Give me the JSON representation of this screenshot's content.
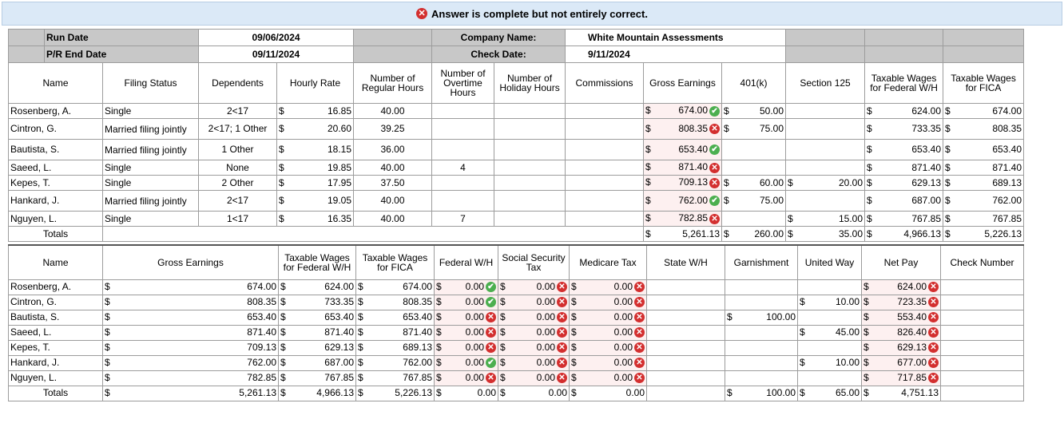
{
  "banner": {
    "text": "Answer is complete but not entirely correct.",
    "icon": "error-icon"
  },
  "meta": {
    "run_date_label": "Run Date",
    "run_date": "09/06/2024",
    "pr_end_label": "P/R End Date",
    "pr_end": "09/11/2024",
    "company_label": "Company Name:",
    "company": "White Mountain Assessments",
    "check_date_label": "Check Date:",
    "check_date": "9/11/2024"
  },
  "t1_headers": [
    "Name",
    "Filing Status",
    "Dependents",
    "Hourly Rate",
    "Number of Regular Hours",
    "Number of Overtime Hours",
    "Number of Holiday Hours",
    "Commissions",
    "Gross Earnings",
    "401(k)",
    "Section 125",
    "Taxable Wages for Federal W/H",
    "Taxable Wages for FICA"
  ],
  "t1_rows": [
    {
      "name": "Rosenberg, A.",
      "status": "Single",
      "dep": "2<17",
      "rate": "16.85",
      "reg": "40.00",
      "ot": "",
      "hol": "",
      "comm": "",
      "gross": "674.00",
      "gross_ok": "ok",
      "k401": "50.00",
      "s125": "",
      "fed": "624.00",
      "fica": "674.00"
    },
    {
      "name": "Cintron, G.",
      "status": "Married filing jointly",
      "dep": "2<17; 1 Other",
      "rate": "20.60",
      "reg": "39.25",
      "ot": "",
      "hol": "",
      "comm": "",
      "gross": "808.35",
      "gross_ok": "bad",
      "k401": "75.00",
      "s125": "",
      "fed": "733.35",
      "fica": "808.35"
    },
    {
      "name": "Bautista, S.",
      "status": "Married filing jointly",
      "dep": "1 Other",
      "rate": "18.15",
      "reg": "36.00",
      "ot": "",
      "hol": "",
      "comm": "",
      "gross": "653.40",
      "gross_ok": "ok",
      "k401": "",
      "s125": "",
      "fed": "653.40",
      "fica": "653.40"
    },
    {
      "name": "Saeed, L.",
      "status": "Single",
      "dep": "None",
      "rate": "19.85",
      "reg": "40.00",
      "ot": "4",
      "hol": "",
      "comm": "",
      "gross": "871.40",
      "gross_ok": "bad",
      "k401": "",
      "s125": "",
      "fed": "871.40",
      "fica": "871.40"
    },
    {
      "name": "Kepes, T.",
      "status": "Single",
      "dep": "2 Other",
      "rate": "17.95",
      "reg": "37.50",
      "ot": "",
      "hol": "",
      "comm": "",
      "gross": "709.13",
      "gross_ok": "bad",
      "k401": "60.00",
      "s125": "20.00",
      "fed": "629.13",
      "fica": "689.13"
    },
    {
      "name": "Hankard, J.",
      "status": "Married filing jointly",
      "dep": "2<17",
      "rate": "19.05",
      "reg": "40.00",
      "ot": "",
      "hol": "",
      "comm": "",
      "gross": "762.00",
      "gross_ok": "ok",
      "k401": "75.00",
      "s125": "",
      "fed": "687.00",
      "fica": "762.00"
    },
    {
      "name": "Nguyen, L.",
      "status": "Single",
      "dep": "1<17",
      "rate": "16.35",
      "reg": "40.00",
      "ot": "7",
      "hol": "",
      "comm": "",
      "gross": "782.85",
      "gross_ok": "bad",
      "k401": "",
      "s125": "15.00",
      "fed": "767.85",
      "fica": "767.85"
    }
  ],
  "t1_totals": {
    "label": "Totals",
    "gross": "5,261.13",
    "k401": "260.00",
    "s125": "35.00",
    "fed": "4,966.13",
    "fica": "5,226.13"
  },
  "t2_headers": [
    "Name",
    "Gross Earnings",
    "Taxable Wages for Federal W/H",
    "Taxable Wages for FICA",
    "Federal W/H",
    "Social Security Tax",
    "Medicare Tax",
    "State W/H",
    "Garnishment",
    "United Way",
    "Net Pay",
    "Check Number"
  ],
  "t2_rows": [
    {
      "name": "Rosenberg, A.",
      "gross": "674.00",
      "fed": "624.00",
      "fica": "674.00",
      "fwh": "0.00",
      "fwh_ok": "ok",
      "ss": "0.00",
      "ss_ok": "bad",
      "med": "0.00",
      "med_ok": "bad",
      "garn": "",
      "uw": "",
      "net": "624.00",
      "net_ok": "bad"
    },
    {
      "name": "Cintron, G.",
      "gross": "808.35",
      "fed": "733.35",
      "fica": "808.35",
      "fwh": "0.00",
      "fwh_ok": "ok",
      "ss": "0.00",
      "ss_ok": "bad",
      "med": "0.00",
      "med_ok": "bad",
      "garn": "",
      "uw": "10.00",
      "net": "723.35",
      "net_ok": "bad"
    },
    {
      "name": "Bautista, S.",
      "gross": "653.40",
      "fed": "653.40",
      "fica": "653.40",
      "fwh": "0.00",
      "fwh_ok": "bad",
      "ss": "0.00",
      "ss_ok": "bad",
      "med": "0.00",
      "med_ok": "bad",
      "garn": "100.00",
      "uw": "",
      "net": "553.40",
      "net_ok": "bad"
    },
    {
      "name": "Saeed, L.",
      "gross": "871.40",
      "fed": "871.40",
      "fica": "871.40",
      "fwh": "0.00",
      "fwh_ok": "bad",
      "ss": "0.00",
      "ss_ok": "bad",
      "med": "0.00",
      "med_ok": "bad",
      "garn": "",
      "uw": "45.00",
      "net": "826.40",
      "net_ok": "bad"
    },
    {
      "name": "Kepes, T.",
      "gross": "709.13",
      "fed": "629.13",
      "fica": "689.13",
      "fwh": "0.00",
      "fwh_ok": "bad",
      "ss": "0.00",
      "ss_ok": "bad",
      "med": "0.00",
      "med_ok": "bad",
      "garn": "",
      "uw": "",
      "net": "629.13",
      "net_ok": "bad"
    },
    {
      "name": "Hankard, J.",
      "gross": "762.00",
      "fed": "687.00",
      "fica": "762.00",
      "fwh": "0.00",
      "fwh_ok": "ok",
      "ss": "0.00",
      "ss_ok": "bad",
      "med": "0.00",
      "med_ok": "bad",
      "garn": "",
      "uw": "10.00",
      "net": "677.00",
      "net_ok": "bad"
    },
    {
      "name": "Nguyen, L.",
      "gross": "782.85",
      "fed": "767.85",
      "fica": "767.85",
      "fwh": "0.00",
      "fwh_ok": "bad",
      "ss": "0.00",
      "ss_ok": "bad",
      "med": "0.00",
      "med_ok": "bad",
      "garn": "",
      "uw": "",
      "net": "717.85",
      "net_ok": "bad"
    }
  ],
  "t2_totals": {
    "label": "Totals",
    "gross": "5,261.13",
    "fed": "4,966.13",
    "fica": "5,226.13",
    "fwh": "0.00",
    "ss": "0.00",
    "med": "0.00",
    "garn": "100.00",
    "uw": "65.00",
    "net": "4,751.13"
  },
  "currency": "$",
  "icons": {
    "ok": "✔",
    "bad": "✕"
  },
  "colors": {
    "ok": "#4caf50",
    "bad": "#d32f2f",
    "banner": "#dbe9f7",
    "header_gray": "#c8c8c8"
  }
}
